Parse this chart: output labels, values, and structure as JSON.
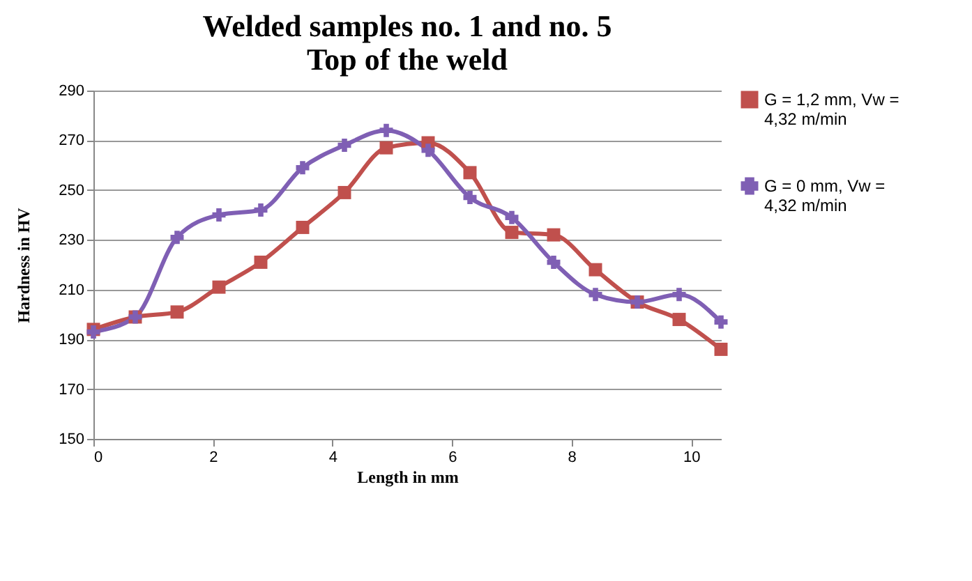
{
  "chart_data": {
    "type": "line",
    "title": [
      "Welded samples no. 1 and no. 5",
      "Top of the weld"
    ],
    "xlabel": "Length in mm",
    "ylabel": "Hardness  in HV",
    "x": [
      0,
      0.7,
      1.4,
      2.1,
      2.8,
      3.5,
      4.2,
      4.9,
      5.6,
      6.3,
      7.0,
      7.7,
      8.4,
      9.1,
      9.8,
      10.5
    ],
    "series": [
      {
        "name": "G = 1,2 mm, Vw = 4,32 m/min",
        "color": "#c0504d",
        "marker": "square",
        "values": [
          194,
          199,
          201,
          211,
          221,
          235,
          249,
          267,
          269,
          257,
          233,
          232,
          218,
          205,
          198,
          186
        ]
      },
      {
        "name": "G = 0 mm, Vw = 4,32 m/min",
        "color": "#7f5fb4",
        "marker": "cross",
        "values": [
          193,
          199,
          231,
          240,
          242,
          259,
          268,
          274,
          266,
          247,
          239,
          221,
          208,
          205,
          208,
          197
        ]
      }
    ],
    "xlim": [
      0,
      10.5
    ],
    "xticks": [
      0,
      2,
      4,
      6,
      8,
      10
    ],
    "ylim": [
      150,
      290
    ],
    "yticks": [
      150,
      170,
      190,
      210,
      230,
      250,
      270,
      290
    ],
    "grid": "y",
    "legend": "right"
  }
}
